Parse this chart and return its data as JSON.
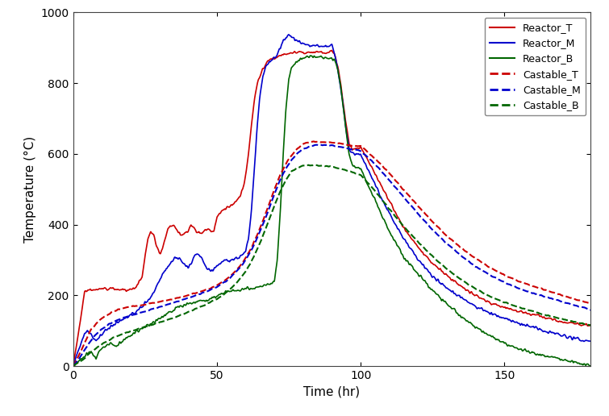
{
  "title": "",
  "xlabel": "Time (hr)",
  "ylabel": "Temperature (°C)",
  "xlim": [
    0,
    180
  ],
  "ylim": [
    0,
    1000
  ],
  "xticks": [
    0,
    50,
    100,
    150
  ],
  "yticks": [
    0,
    200,
    400,
    600,
    800,
    1000
  ],
  "legend_labels": [
    "Reactor_T",
    "Reactor_M",
    "Reactor_B",
    "Castable_T",
    "Castable_M",
    "Castable_B"
  ],
  "colors": [
    "#cc0000",
    "#0000cc",
    "#006600",
    "#cc0000",
    "#0000cc",
    "#006600"
  ],
  "linestyles": [
    "-",
    "-",
    "-",
    "--",
    "--",
    "--"
  ],
  "linewidths": [
    1.2,
    1.2,
    1.2,
    1.5,
    1.5,
    1.5
  ],
  "background_color": "#ffffff",
  "figsize": [
    7.55,
    5.16
  ],
  "dpi": 100
}
